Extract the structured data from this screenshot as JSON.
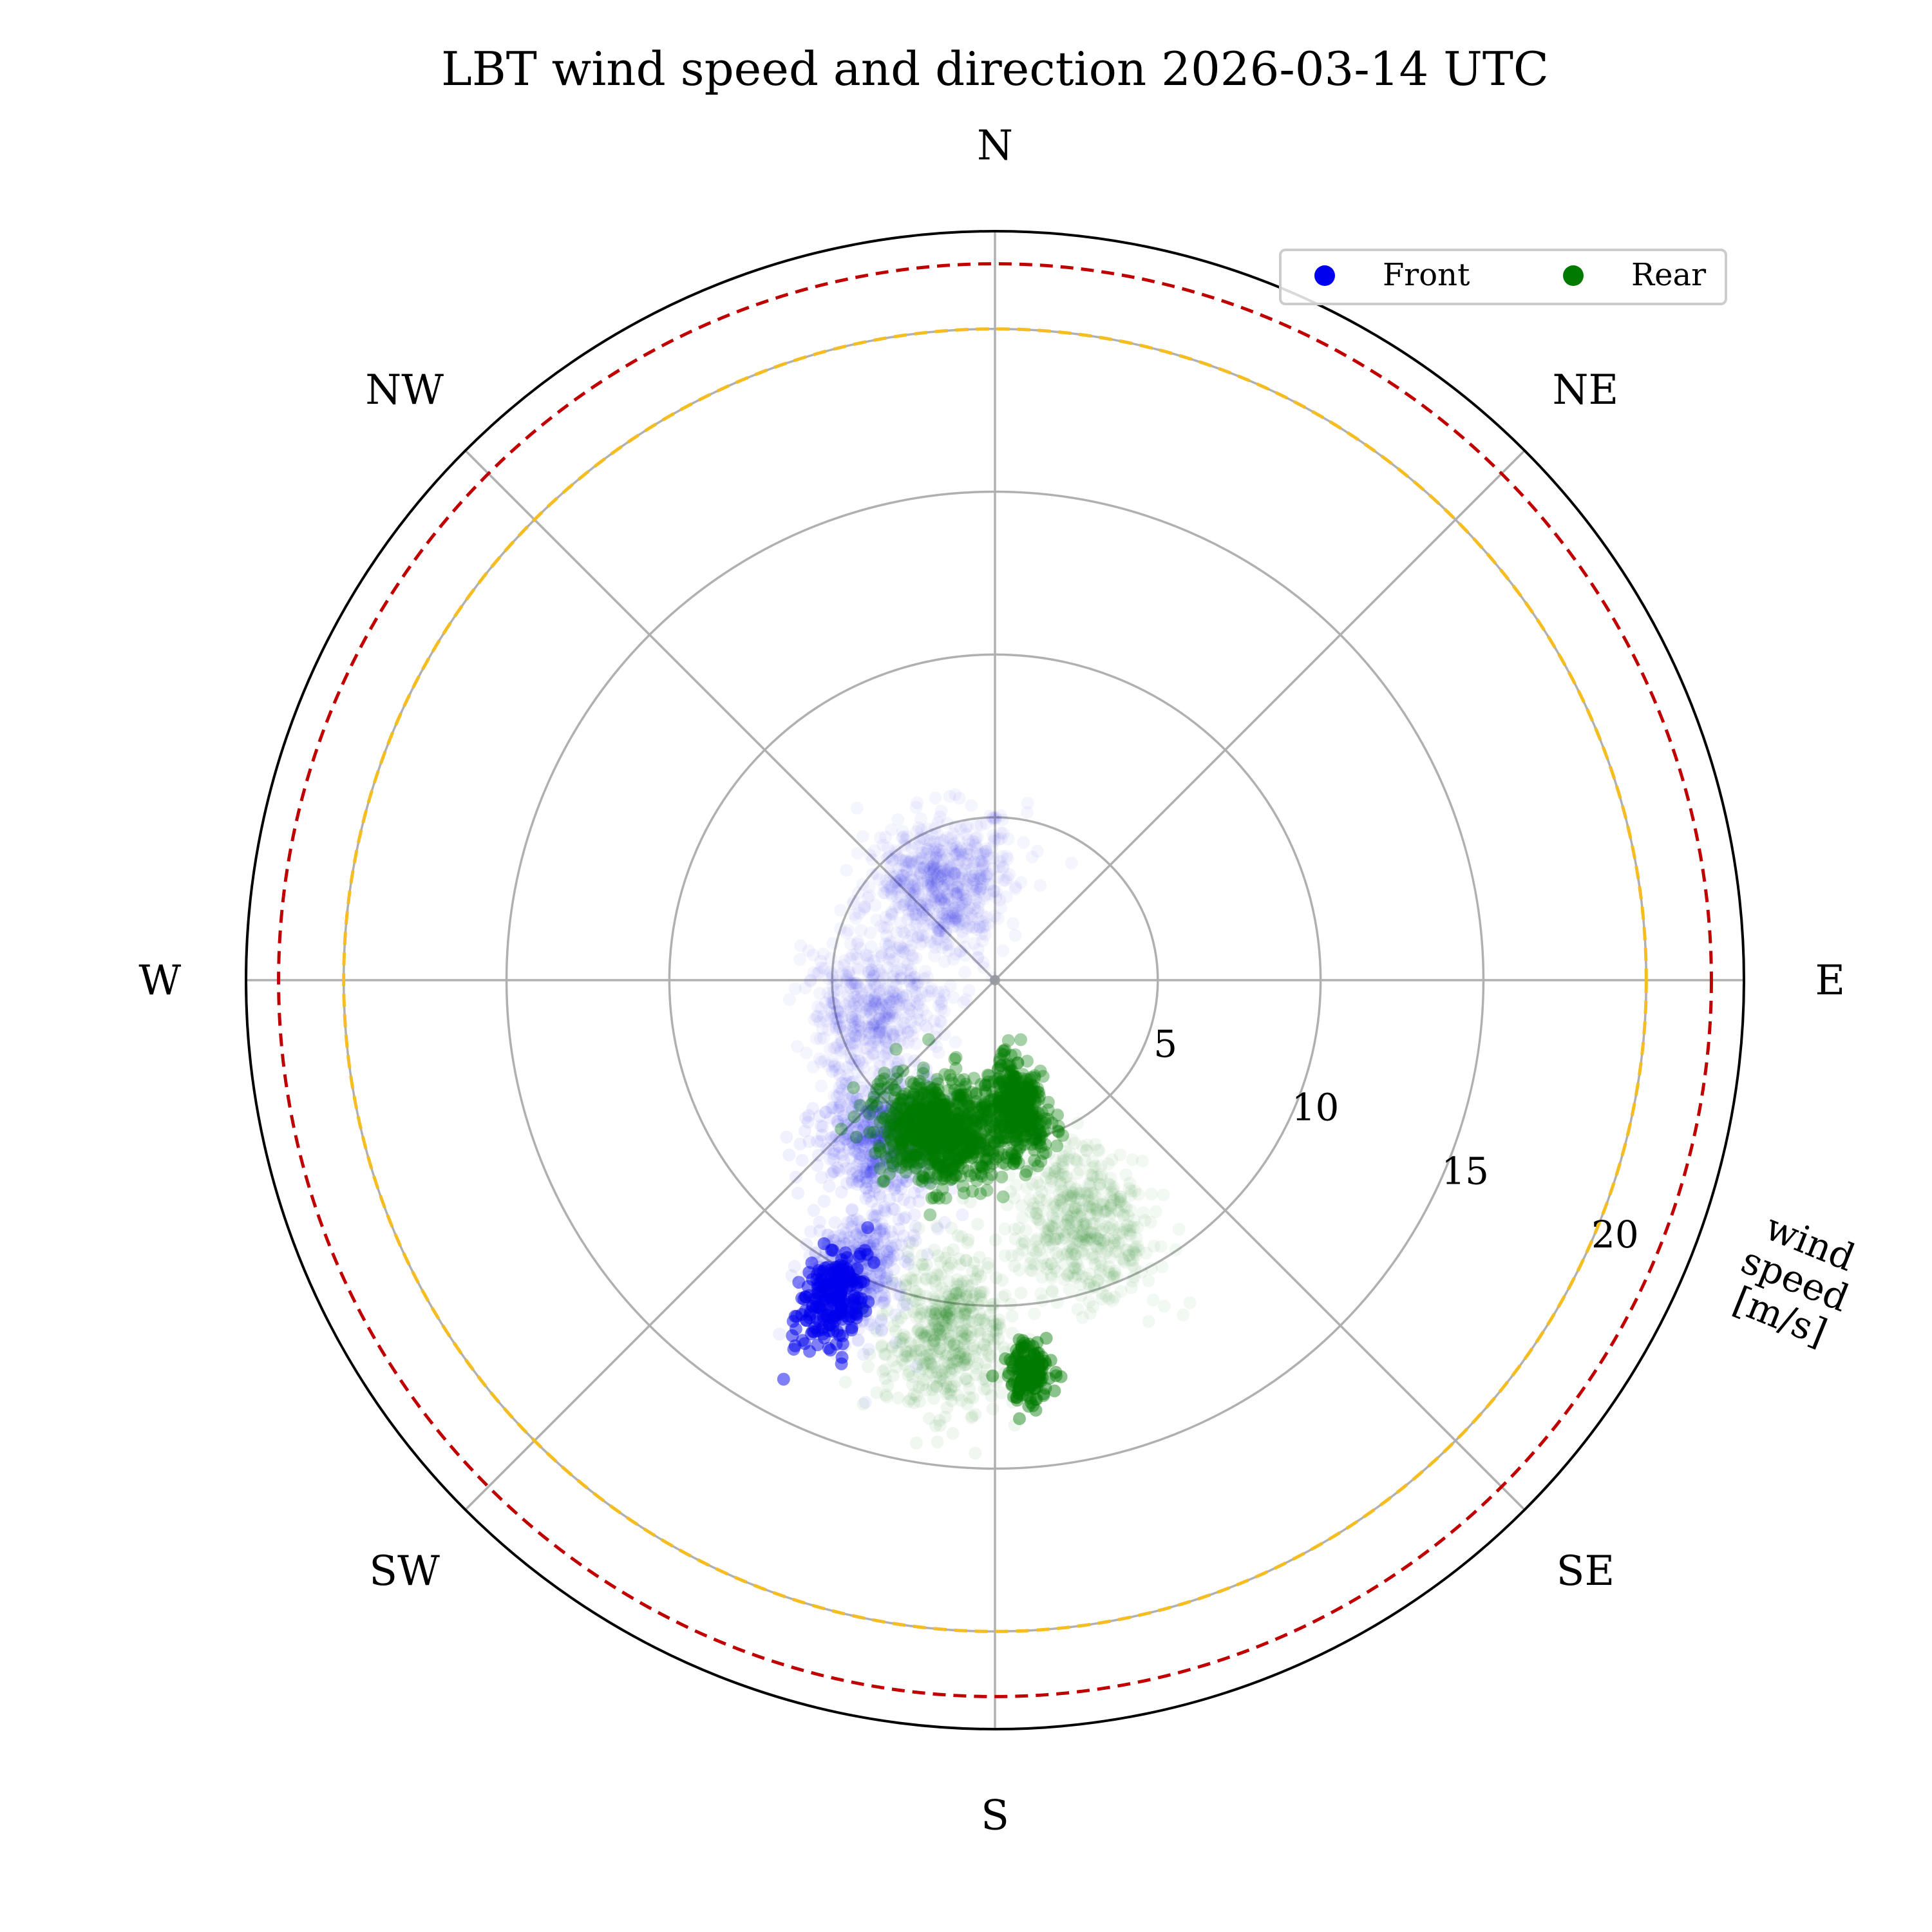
{
  "chart_data": {
    "type": "scatter",
    "subtype": "polar",
    "title": "LBT wind speed and direction 2026-03-14 UTC",
    "theta_direction": "clockwise",
    "theta_zero": "N",
    "direction_labels": [
      {
        "label": "N",
        "deg": 0
      },
      {
        "label": "NE",
        "deg": 45
      },
      {
        "label": "E",
        "deg": 90
      },
      {
        "label": "SE",
        "deg": 135
      },
      {
        "label": "S",
        "deg": 180
      },
      {
        "label": "SW",
        "deg": 225
      },
      {
        "label": "W",
        "deg": 270
      },
      {
        "label": "NW",
        "deg": 315
      }
    ],
    "rlim": [
      0,
      23
    ],
    "rticks": [
      5,
      10,
      15,
      20
    ],
    "rtick_labels": [
      "5",
      "10",
      "15",
      "20"
    ],
    "rlabel": [
      "wind",
      "speed",
      "[m/s]"
    ],
    "thresholds": [
      {
        "name": "yellow-limit",
        "value": 20,
        "color": "#f5bd1f",
        "style": "dashed"
      },
      {
        "name": "red-limit",
        "value": 22,
        "color": "#c00000",
        "style": "dashed"
      }
    ],
    "legend": {
      "placement": "top-right",
      "entries": [
        "Front",
        "Rear"
      ]
    },
    "series": [
      {
        "name": "Front",
        "color": "#0000ee",
        "clusters": [
          {
            "dir_deg": 330,
            "speed": 3.5,
            "spread_deg": 40,
            "spread_speed": 2.0,
            "n": 700,
            "opacity": 0.04
          },
          {
            "dir_deg": 255,
            "speed": 4.0,
            "spread_deg": 30,
            "spread_speed": 2.0,
            "n": 500,
            "opacity": 0.04
          },
          {
            "dir_deg": 215,
            "speed": 6.0,
            "spread_deg": 18,
            "spread_speed": 2.0,
            "n": 600,
            "opacity": 0.06
          },
          {
            "dir_deg": 205,
            "speed": 10.0,
            "spread_deg": 8,
            "spread_speed": 2.0,
            "n": 450,
            "opacity": 0.06
          },
          {
            "dir_deg": 207,
            "speed": 11.0,
            "spread_deg": 5,
            "spread_speed": 1.6,
            "n": 220,
            "opacity": 0.5
          }
        ]
      },
      {
        "name": "Rear",
        "color": "#007a00",
        "clusters": [
          {
            "dir_deg": 200,
            "speed": 5.0,
            "spread_deg": 22,
            "spread_speed": 1.5,
            "n": 800,
            "opacity": 0.35
          },
          {
            "dir_deg": 170,
            "speed": 4.0,
            "spread_deg": 12,
            "spread_speed": 1.5,
            "n": 400,
            "opacity": 0.35
          },
          {
            "dir_deg": 160,
            "speed": 8.0,
            "spread_deg": 15,
            "spread_speed": 2.5,
            "n": 500,
            "opacity": 0.05
          },
          {
            "dir_deg": 188,
            "speed": 11.0,
            "spread_deg": 10,
            "spread_speed": 2.5,
            "n": 500,
            "opacity": 0.06
          },
          {
            "dir_deg": 175,
            "speed": 12.0,
            "spread_deg": 3,
            "spread_speed": 0.9,
            "n": 160,
            "opacity": 0.45
          }
        ]
      }
    ]
  }
}
